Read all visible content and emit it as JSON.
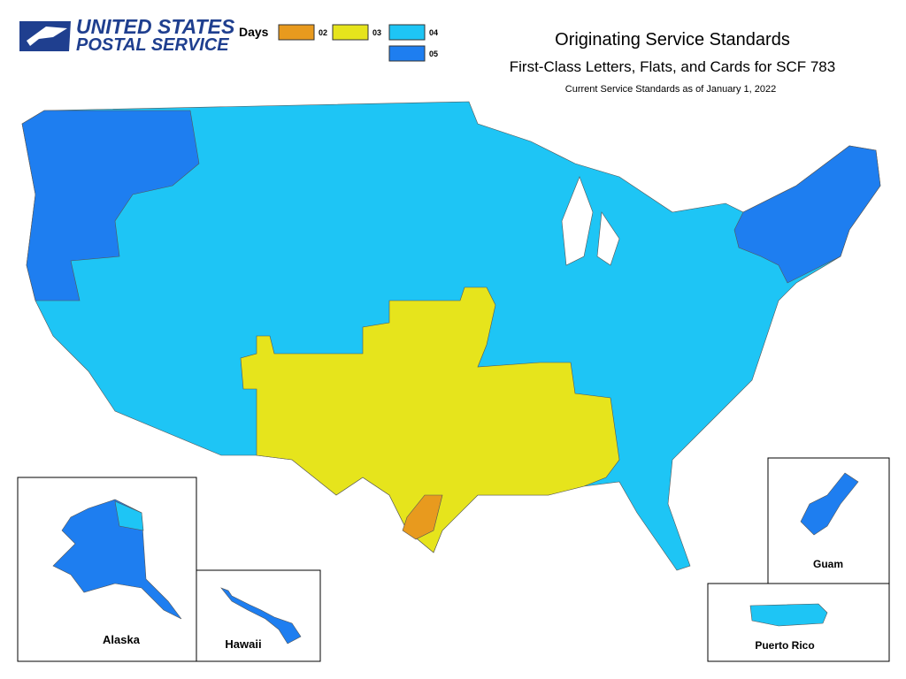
{
  "logo": {
    "line1": "UNITED STATES",
    "line2": "POSTAL SERVICE"
  },
  "legend": {
    "title": "Days",
    "items": [
      {
        "label": "02",
        "color": "#e89a1e"
      },
      {
        "label": "03",
        "color": "#e6e41c"
      },
      {
        "label": "04",
        "color": "#1ec5f5"
      },
      {
        "label": "05",
        "color": "#1e7ef0"
      }
    ]
  },
  "header": {
    "title": "Originating Service Standards",
    "subtitle": "First-Class Letters, Flats, and Cards for SCF 783",
    "note": "Current Service Standards as of January 1, 2022"
  },
  "insets": {
    "alaska": "Alaska",
    "hawaii": "Hawaii",
    "guam": "Guam",
    "puerto_rico": "Puerto Rico"
  }
}
